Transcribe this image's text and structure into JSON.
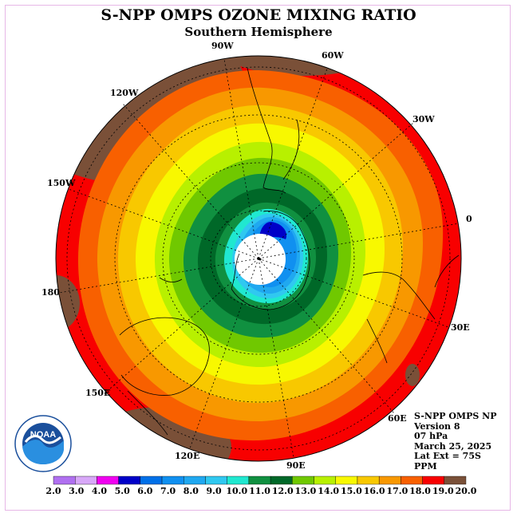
{
  "title": "S-NPP OMPS OZONE MIXING RATIO",
  "subtitle": "Southern Hemisphere",
  "longitude_labels": [
    {
      "id": "90w",
      "text": "90W"
    },
    {
      "id": "60w",
      "text": "60W"
    },
    {
      "id": "30w",
      "text": "30W"
    },
    {
      "id": "0",
      "text": "0"
    },
    {
      "id": "30e",
      "text": "30E"
    },
    {
      "id": "60e",
      "text": "60E"
    },
    {
      "id": "90e",
      "text": "90E"
    },
    {
      "id": "120e",
      "text": "120E"
    },
    {
      "id": "150e",
      "text": "150E"
    },
    {
      "id": "180",
      "text": "180"
    },
    {
      "id": "150w",
      "text": "150W"
    },
    {
      "id": "120w",
      "text": "120W"
    }
  ],
  "info": {
    "instrument": "S-NPP OMPS NP",
    "version": "Version 8",
    "pressure": "07 hPa",
    "date": "March 25, 2025",
    "lat_ext": "Lat Ext = 75S",
    "units": "PPM"
  },
  "logo_text": "NOAA",
  "colorbar": {
    "labels": [
      "2.0",
      "3.0",
      "4.0",
      "5.0",
      "6.0",
      "7.0",
      "8.0",
      "9.0",
      "10.0",
      "11.0",
      "12.0",
      "13.0",
      "14.0",
      "15.0",
      "16.0",
      "17.0",
      "18.0",
      "19.0",
      "20.0"
    ],
    "colors": [
      "#b070f0",
      "#d8a8f8",
      "#f000f0",
      "#0000c8",
      "#0070e8",
      "#1090f0",
      "#20a8f0",
      "#30c8f0",
      "#20e8d0",
      "#109040",
      "#006828",
      "#70c800",
      "#b8f000",
      "#f8f800",
      "#f8c800",
      "#f89800",
      "#f86000",
      "#f80000",
      "#7a5038"
    ]
  }
}
